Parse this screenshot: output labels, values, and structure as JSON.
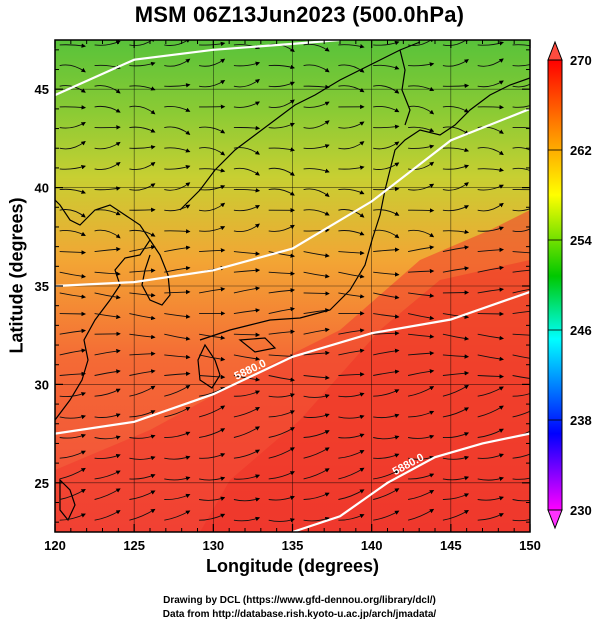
{
  "title": "MSM 06Z13Jun2023 (500.0hPa)",
  "xlabel": "Longitude (degrees)",
  "ylabel": "Latitude  (degrees)",
  "credits": [
    "Drawing by DCL (https://www.gfd-dennou.org/library/dcl/)",
    "Data from http://database.rish.kyoto-u.ac.jp/arch/jmadata/"
  ],
  "colors": {
    "south": "#f24a3a",
    "mid": "#f3a534",
    "north": "#58c23a",
    "contour": "#ffffff",
    "frame": "#000000"
  },
  "chart_data": {
    "type": "map",
    "map_extent": {
      "lon": [
        120,
        150
      ],
      "lat": [
        22.5,
        47.5
      ]
    },
    "x_ticks": [
      "120",
      "125",
      "130",
      "135",
      "140",
      "145",
      "150"
    ],
    "y_ticks": [
      "25",
      "30",
      "35",
      "40",
      "45"
    ],
    "colorbar": {
      "variable_range": [
        230,
        270
      ],
      "tick_labels": [
        "270",
        "262",
        "254",
        "246",
        "238",
        "230"
      ],
      "stops": [
        "#ff00ff",
        "#0000ff",
        "#00ffff",
        "#00c800",
        "#ffff00",
        "#ff8c00",
        "#ff0000"
      ]
    },
    "contours": [
      {
        "label": "",
        "points": [
          [
            120,
            44.7
          ],
          [
            125,
            46.5
          ],
          [
            130,
            47.0
          ],
          [
            135,
            47.3
          ],
          [
            138,
            47.5
          ]
        ]
      },
      {
        "label": "",
        "points": [
          [
            120,
            35.0
          ],
          [
            125,
            35.2
          ],
          [
            130,
            35.8
          ],
          [
            135,
            36.9
          ],
          [
            140,
            39.3
          ],
          [
            145,
            42.4
          ],
          [
            150,
            44.0
          ]
        ]
      },
      {
        "label": "5880.0",
        "points": [
          [
            120,
            27.5
          ],
          [
            125,
            28.1
          ],
          [
            130,
            29.5
          ],
          [
            135,
            31.4
          ],
          [
            140,
            32.6
          ],
          [
            145,
            33.3
          ],
          [
            150,
            34.7
          ]
        ]
      },
      {
        "label": "5880.0",
        "points": [
          [
            135,
            22.5
          ],
          [
            138,
            23.3
          ],
          [
            141,
            25.0
          ],
          [
            144,
            26.3
          ],
          [
            147,
            27.0
          ],
          [
            150,
            27.5
          ]
        ]
      }
    ]
  }
}
